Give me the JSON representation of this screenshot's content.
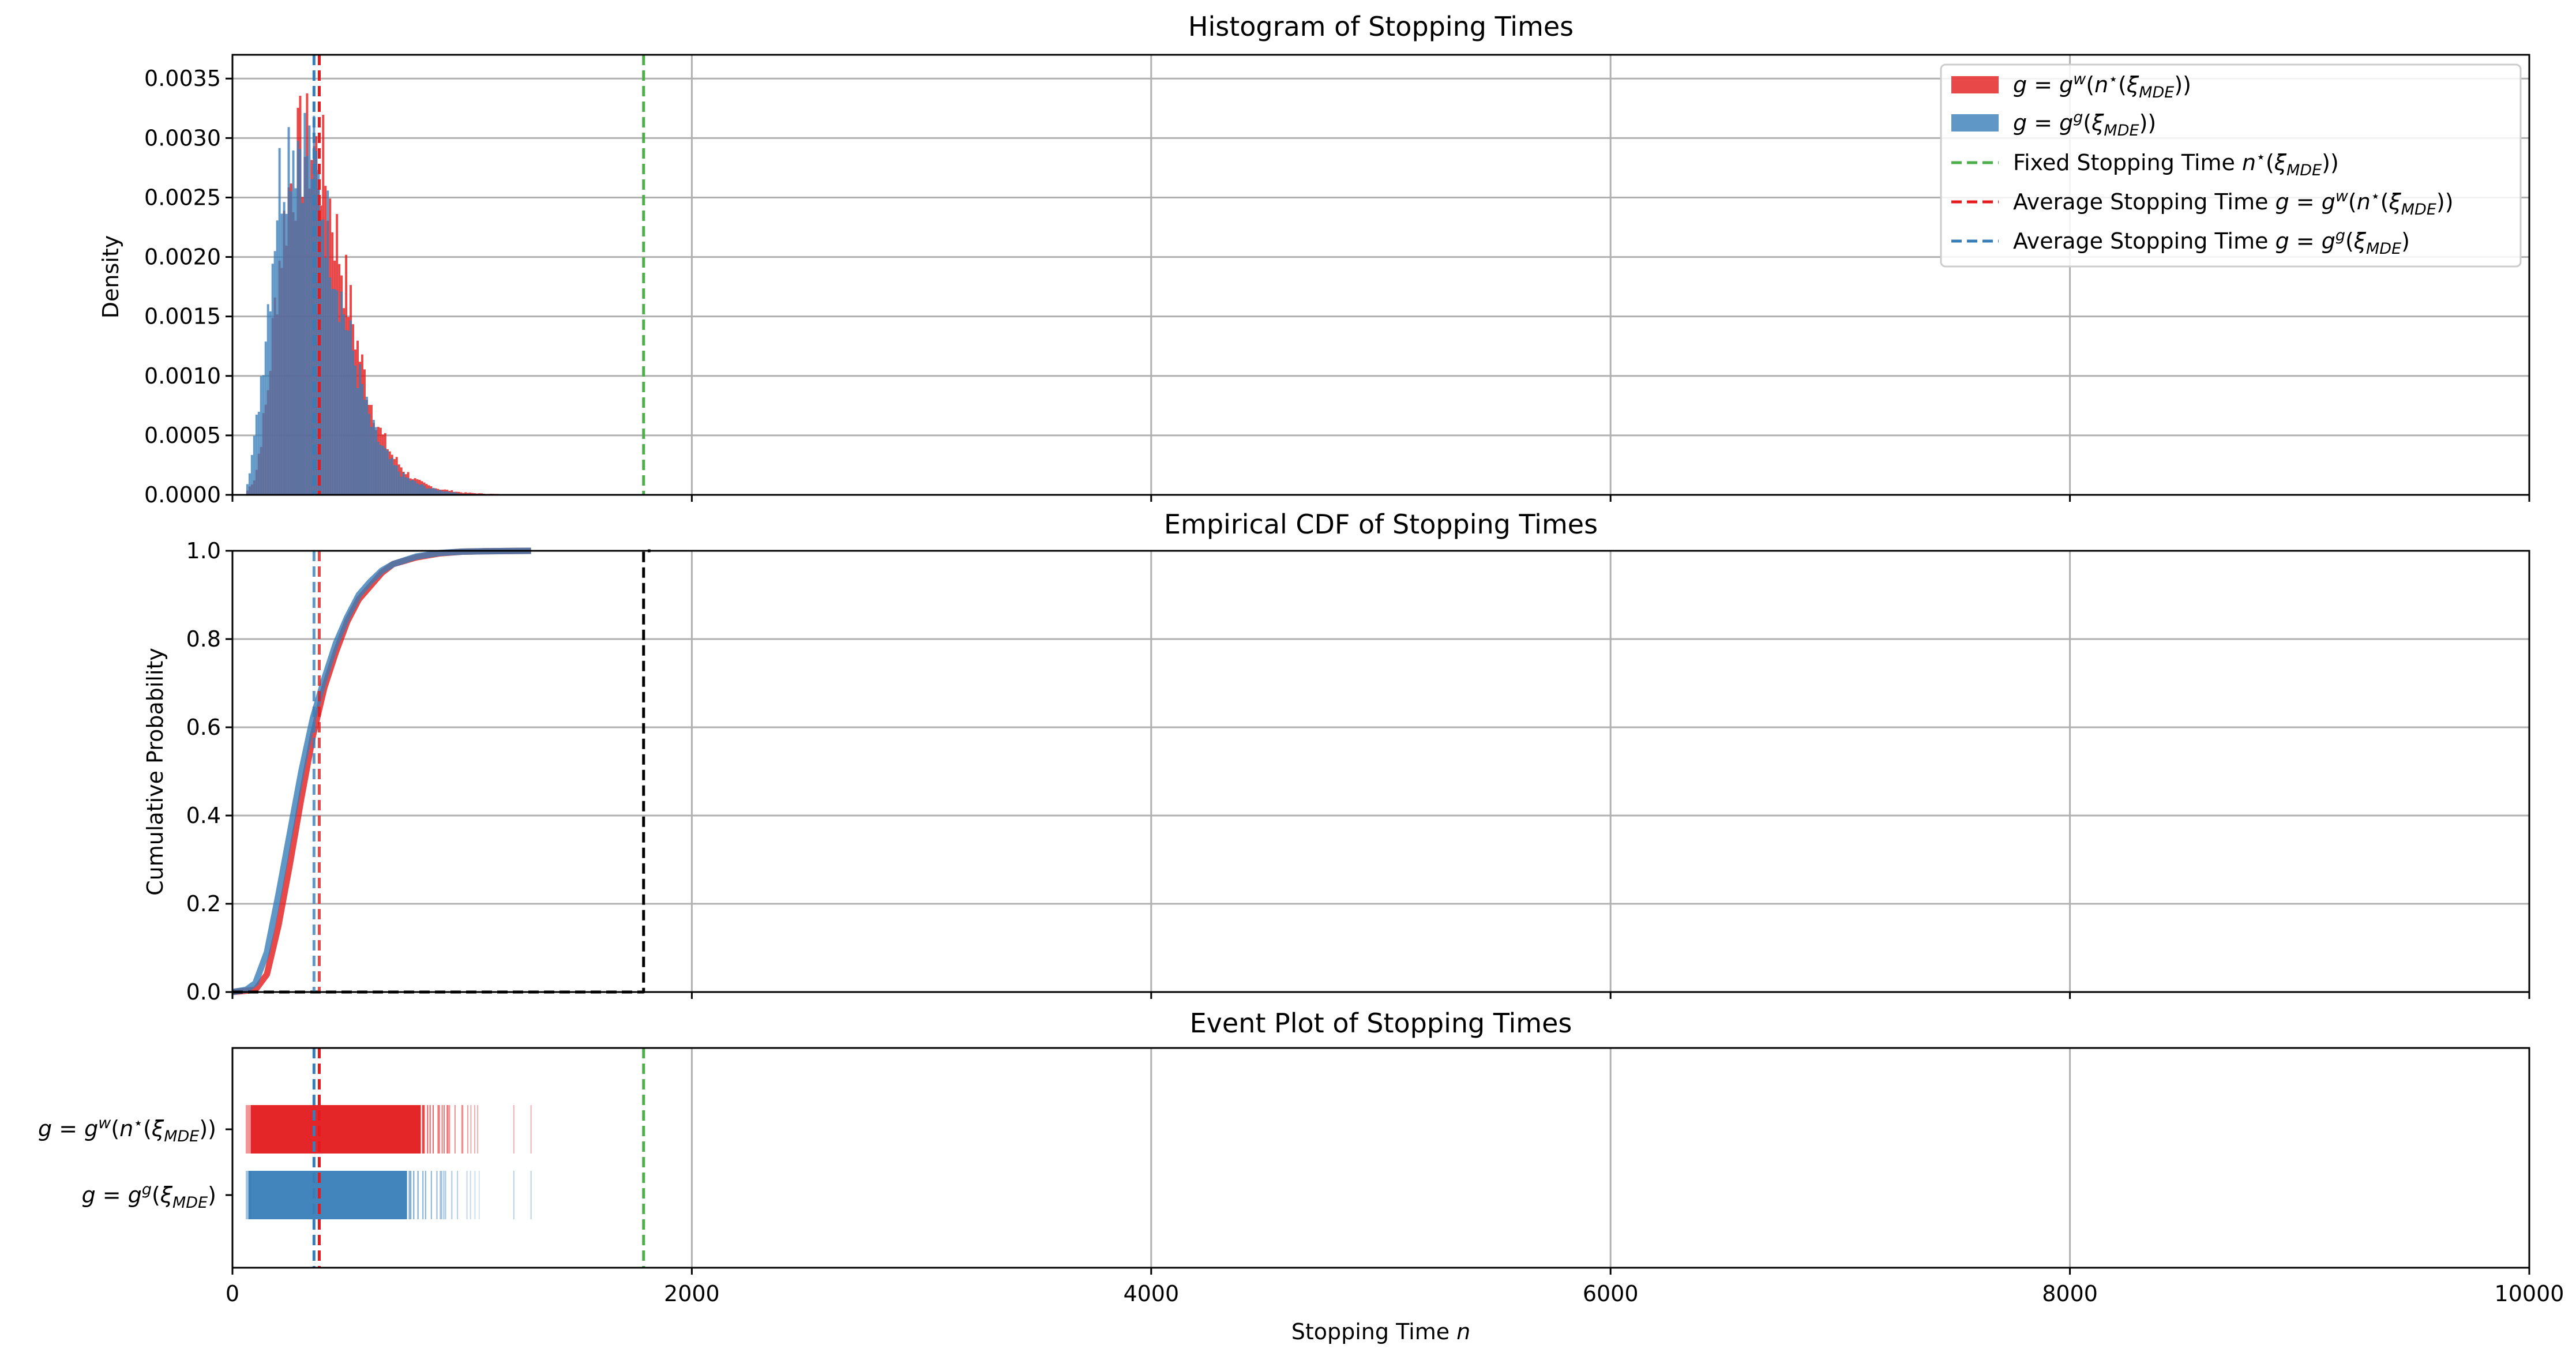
{
  "chart_data": [
    {
      "type": "histogram",
      "title": "Histogram of Stopping Times",
      "ylabel": "Density",
      "xlim": [
        0,
        10000
      ],
      "ylim": [
        0,
        0.0037
      ],
      "yticks": [
        "0.0000",
        "0.0005",
        "0.0010",
        "0.0015",
        "0.0020",
        "0.0025",
        "0.0030",
        "0.0035"
      ],
      "yticks_values": [
        0,
        0.0005,
        0.001,
        0.0015,
        0.002,
        0.0025,
        0.003,
        0.0035
      ],
      "grid": true,
      "legend_position": "top-right",
      "series": [
        {
          "color": "#e41a1c",
          "x": [
            60,
            100,
            150,
            200,
            250,
            300,
            350,
            400,
            450,
            500,
            550,
            600,
            650,
            700,
            750,
            800,
            850,
            900,
            1000,
            1100,
            1200
          ],
          "y": [
            2e-05,
            0.00015,
            0.0008,
            0.0019,
            0.0026,
            0.0029,
            0.0029,
            0.0027,
            0.0022,
            0.0017,
            0.0012,
            0.0008,
            0.0005,
            0.00032,
            0.0002,
            0.00012,
            8e-05,
            5e-05,
            2e-05,
            1e-05,
            5e-06
          ]
        },
        {
          "color": "#377eb8",
          "x": [
            60,
            100,
            150,
            200,
            250,
            300,
            350,
            400,
            450,
            500,
            550,
            600,
            650,
            700,
            750,
            800,
            850,
            900,
            1000,
            1100,
            1200
          ],
          "y": [
            5e-05,
            0.0005,
            0.0015,
            0.0026,
            0.003,
            0.003,
            0.0028,
            0.0024,
            0.0019,
            0.0014,
            0.001,
            0.0006,
            0.0004,
            0.00025,
            0.00015,
            0.0001,
            6e-05,
            4e-05,
            1e-05,
            6e-06,
            3e-06
          ]
        }
      ],
      "vlines": [
        {
          "x": 1790,
          "color": "#4daf4a"
        },
        {
          "x": 378,
          "color": "#e41a1c"
        },
        {
          "x": 355,
          "color": "#377eb8"
        }
      ],
      "legend": [
        {
          "kind": "patch",
          "color": "#e41a1c",
          "math": "w-star"
        },
        {
          "kind": "patch",
          "color": "#377eb8",
          "math": "g-xi"
        },
        {
          "kind": "line",
          "color": "#4daf4a",
          "prefix": "Fixed Stopping Time ",
          "math": "n-star"
        },
        {
          "kind": "line",
          "color": "#e41a1c",
          "prefix": "Average Stopping Time ",
          "math": "w-star"
        },
        {
          "kind": "line",
          "color": "#377eb8",
          "prefix": "Average Stopping Time ",
          "math": "g-xi"
        }
      ]
    },
    {
      "type": "line",
      "title": "Empirical CDF of Stopping Times",
      "ylabel": "Cumulative Probability",
      "xlim": [
        0,
        10000
      ],
      "ylim": [
        0,
        1
      ],
      "yticks": [
        "0.0",
        "0.2",
        "0.4",
        "0.6",
        "0.8",
        "1.0"
      ],
      "yticks_values": [
        0,
        0.2,
        0.4,
        0.6,
        0.8,
        1.0
      ],
      "grid": true,
      "series": [
        {
          "color": "#e41a1c",
          "x": [
            0,
            100,
            150,
            200,
            250,
            300,
            350,
            400,
            450,
            500,
            550,
            600,
            650,
            700,
            800,
            900,
            1000,
            1100,
            1300
          ],
          "y": [
            0,
            0.005,
            0.04,
            0.15,
            0.29,
            0.44,
            0.58,
            0.69,
            0.77,
            0.84,
            0.89,
            0.92,
            0.95,
            0.97,
            0.985,
            0.994,
            0.998,
            0.999,
            1.0
          ]
        },
        {
          "color": "#377eb8",
          "x": [
            0,
            60,
            100,
            150,
            200,
            250,
            300,
            350,
            400,
            450,
            500,
            550,
            600,
            650,
            700,
            800,
            900,
            1000,
            1100,
            1300
          ],
          "y": [
            0,
            0.005,
            0.02,
            0.09,
            0.22,
            0.36,
            0.5,
            0.62,
            0.71,
            0.79,
            0.85,
            0.9,
            0.93,
            0.955,
            0.97,
            0.987,
            0.995,
            0.998,
            0.999,
            1.0
          ]
        },
        {
          "color": "#000000",
          "dashed": true,
          "x": [
            0,
            1790,
            1790,
            1820
          ],
          "y": [
            0,
            0,
            1.0,
            1.0
          ]
        }
      ],
      "vlines": [
        {
          "x": 378,
          "color": "#e41a1c"
        },
        {
          "x": 355,
          "color": "#377eb8"
        }
      ]
    },
    {
      "type": "event",
      "title": "Event Plot of Stopping Times",
      "xlabel": "Stopping Time n",
      "xlabel_prefix": "Stopping Time ",
      "xlabel_var": "n",
      "xlim": [
        0,
        10000
      ],
      "xticks": [
        "0",
        "2000",
        "4000",
        "6000",
        "8000",
        "10000"
      ],
      "xticks_values": [
        0,
        2000,
        4000,
        6000,
        8000,
        10000
      ],
      "grid": true,
      "rows": [
        {
          "color": "#e41a1c",
          "math": "w-star",
          "dense_range": [
            80,
            820
          ]
        },
        {
          "color": "#377eb8",
          "math": "g-xi",
          "dense_range": [
            70,
            760
          ]
        }
      ],
      "vlines": [
        {
          "x": 1790,
          "color": "#4daf4a"
        },
        {
          "x": 378,
          "color": "#e41a1c"
        },
        {
          "x": 355,
          "color": "#377eb8"
        }
      ]
    }
  ]
}
